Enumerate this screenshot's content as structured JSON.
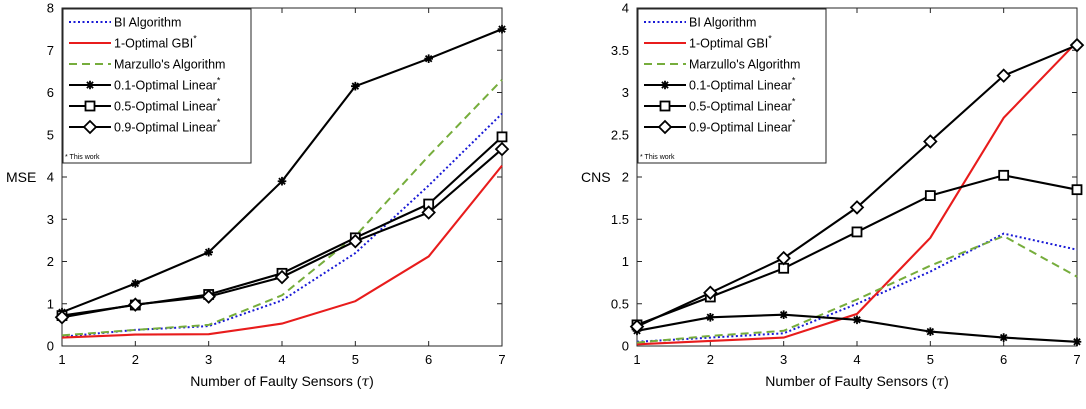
{
  "chart_data": [
    {
      "type": "line",
      "ylabel": "MSE",
      "xlabel": "Number of Faulty Sensors (τ)",
      "xlabel_main": "Number of Faulty Sensors (",
      "xlabel_symbol": "τ",
      "xlabel_close": ")",
      "xlim": [
        1,
        7
      ],
      "ylim": [
        0,
        8
      ],
      "x_ticks": [
        "1",
        "2",
        "3",
        "4",
        "5",
        "6",
        "7"
      ],
      "y_ticks": [
        "0",
        "1",
        "2",
        "3",
        "4",
        "5",
        "6",
        "7",
        "8"
      ],
      "x": [
        1,
        2,
        3,
        4,
        5,
        6,
        7
      ],
      "legend_note": "* This work",
      "series": [
        {
          "name": "BI Algorithm",
          "sup": "",
          "color": "#1a1ad6",
          "dash": "dotted",
          "marker": "none",
          "values": [
            0.22,
            0.38,
            0.47,
            1.08,
            2.2,
            3.8,
            5.5
          ]
        },
        {
          "name": "1-Optimal GBI",
          "sup": "*",
          "color": "#e81c1c",
          "dash": "solid",
          "marker": "none",
          "values": [
            0.2,
            0.27,
            0.28,
            0.53,
            1.06,
            2.12,
            4.27
          ]
        },
        {
          "name": "Marzullo's Algorithm",
          "sup": "",
          "color": "#76ad3c",
          "dash": "dashed",
          "marker": "none",
          "values": [
            0.25,
            0.38,
            0.5,
            1.2,
            2.6,
            4.5,
            6.3
          ]
        },
        {
          "name": "0.1-Optimal Linear",
          "sup": "*",
          "color": "#000000",
          "dash": "solid",
          "marker": "asterisk",
          "values": [
            0.8,
            1.48,
            2.22,
            3.9,
            6.15,
            6.8,
            7.5
          ]
        },
        {
          "name": "0.5-Optimal Linear",
          "sup": "*",
          "color": "#000000",
          "dash": "solid",
          "marker": "square",
          "values": [
            0.72,
            0.97,
            1.22,
            1.72,
            2.56,
            3.36,
            4.95
          ]
        },
        {
          "name": "0.9-Optimal Linear",
          "sup": "*",
          "color": "#000000",
          "dash": "solid",
          "marker": "diamond",
          "values": [
            0.68,
            0.98,
            1.17,
            1.63,
            2.48,
            3.16,
            4.66
          ]
        }
      ]
    },
    {
      "type": "line",
      "ylabel": "CNS",
      "xlabel": "Number of Faulty Sensors (τ)",
      "xlabel_main": "Number of Faulty Sensors (",
      "xlabel_symbol": "τ",
      "xlabel_close": ")",
      "xlim": [
        1,
        7
      ],
      "ylim": [
        0,
        4
      ],
      "x_ticks": [
        "1",
        "2",
        "3",
        "4",
        "5",
        "6",
        "7"
      ],
      "y_ticks": [
        "0",
        "0.5",
        "1",
        "1.5",
        "2",
        "2.5",
        "3",
        "3.5",
        "4"
      ],
      "x": [
        1,
        2,
        3,
        4,
        5,
        6,
        7
      ],
      "legend_note": "* This work",
      "series": [
        {
          "name": "BI Algorithm",
          "sup": "",
          "color": "#1a1ad6",
          "dash": "dotted",
          "marker": "none",
          "values": [
            0.05,
            0.1,
            0.15,
            0.5,
            0.88,
            1.33,
            1.14
          ]
        },
        {
          "name": "1-Optimal GBI",
          "sup": "*",
          "color": "#e81c1c",
          "dash": "solid",
          "marker": "none",
          "values": [
            0.02,
            0.06,
            0.1,
            0.38,
            1.28,
            2.7,
            3.6
          ]
        },
        {
          "name": "Marzullo's Algorithm",
          "sup": "",
          "color": "#76ad3c",
          "dash": "dashed",
          "marker": "none",
          "values": [
            0.04,
            0.12,
            0.18,
            0.55,
            0.95,
            1.3,
            0.82
          ]
        },
        {
          "name": "0.1-Optimal Linear",
          "sup": "*",
          "color": "#000000",
          "dash": "solid",
          "marker": "asterisk",
          "values": [
            0.18,
            0.34,
            0.37,
            0.31,
            0.17,
            0.1,
            0.05
          ]
        },
        {
          "name": "0.5-Optimal Linear",
          "sup": "*",
          "color": "#000000",
          "dash": "solid",
          "marker": "square",
          "values": [
            0.25,
            0.58,
            0.92,
            1.35,
            1.78,
            2.02,
            1.85
          ]
        },
        {
          "name": "0.9-Optimal Linear",
          "sup": "*",
          "color": "#000000",
          "dash": "solid",
          "marker": "diamond",
          "values": [
            0.23,
            0.63,
            1.04,
            1.64,
            2.42,
            3.2,
            3.56
          ]
        }
      ]
    }
  ]
}
